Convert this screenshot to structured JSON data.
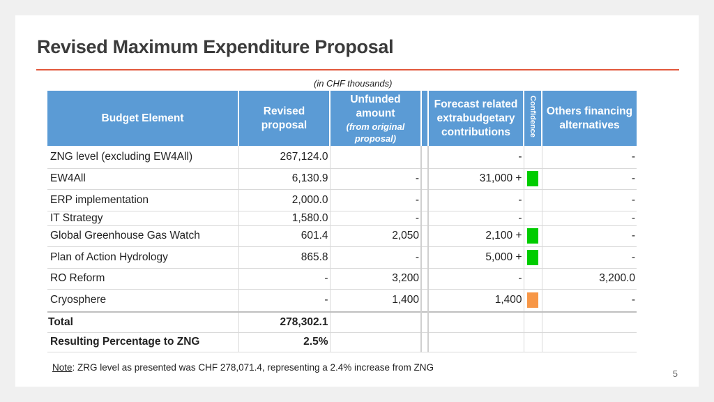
{
  "slide": {
    "title": "Revised Maximum Expenditure Proposal",
    "units": "(in CHF thousands)",
    "page_number": "5"
  },
  "colors": {
    "header_bg": "#5b9bd5",
    "title_rule": "#e2573b",
    "confidence_high": "#00cc00",
    "confidence_medium": "#f79646"
  },
  "table": {
    "headers": {
      "element": "Budget Element",
      "revised": "Revised proposal",
      "unfunded": "Unfunded amount",
      "unfunded_note": "(from original proposal)",
      "forecast": "Forecast related extrabudgetary contributions",
      "confidence": "Confidence",
      "others": "Others financing alternatives"
    },
    "rows": [
      {
        "element": "ZNG level (excluding EW4All)",
        "revised": "267,124.0",
        "unfunded": "",
        "forecast": "-",
        "confidence": "",
        "others": "-"
      },
      {
        "element": "EW4All",
        "revised": "6,130.9",
        "unfunded": "-",
        "forecast": "31,000 +",
        "confidence": "green",
        "others": "-"
      },
      {
        "element": "ERP implementation",
        "revised": "2,000.0",
        "unfunded": "-",
        "forecast": "-",
        "confidence": "",
        "others": "-"
      },
      {
        "element": "IT Strategy",
        "revised": "1,580.0",
        "unfunded": "-",
        "forecast": "-",
        "confidence": "",
        "others": "-"
      },
      {
        "element": "Global Greenhouse Gas Watch",
        "revised": "601.4",
        "unfunded": "2,050",
        "forecast": "2,100 +",
        "confidence": "green",
        "others": "-"
      },
      {
        "element": "Plan of Action Hydrology",
        "revised": "865.8",
        "unfunded": "-",
        "forecast": "5,000 +",
        "confidence": "green",
        "others": "-"
      },
      {
        "element": "RO Reform",
        "revised": "-",
        "unfunded": "3,200",
        "forecast": "-",
        "confidence": "",
        "others": "3,200.0"
      },
      {
        "element": "Cryosphere",
        "revised": "-",
        "unfunded": "1,400",
        "forecast": "1,400",
        "confidence": "orange",
        "others": "-"
      }
    ],
    "total": {
      "label": "Total",
      "revised": "278,302.1"
    },
    "percentage": {
      "label": "Resulting Percentage to ZNG",
      "revised": "2.5%"
    }
  },
  "note": {
    "label": "Note",
    "text": ": ZRG level as presented was CHF 278,071.4, representing a 2.4% increase from ZNG"
  }
}
